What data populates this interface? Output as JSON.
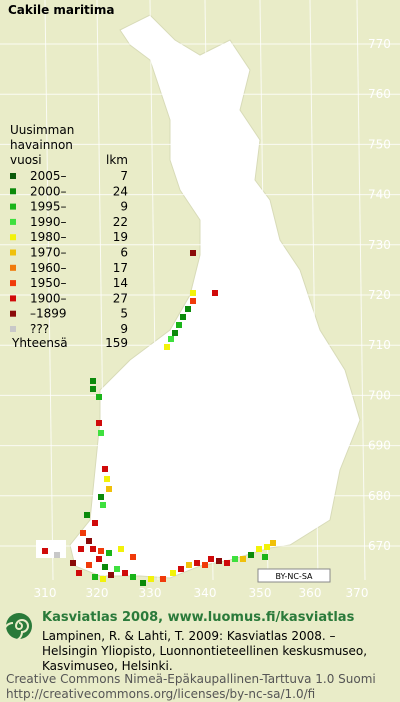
{
  "title": "Cakile maritima",
  "legend": {
    "heading": [
      "Uusimman",
      "havainnon",
      "vuosi"
    ],
    "count_heading": "lkm",
    "rows": [
      {
        "label": "2005–",
        "count": 7,
        "color": "#0a5a0a"
      },
      {
        "label": "2000–",
        "count": 24,
        "color": "#0b8a0b"
      },
      {
        "label": "1995–",
        "count": 9,
        "color": "#19b419"
      },
      {
        "label": "1990–",
        "count": 22,
        "color": "#3ee03e"
      },
      {
        "label": "1980–",
        "count": 19,
        "color": "#f2f20a"
      },
      {
        "label": "1970–",
        "count": 6,
        "color": "#f0c00a"
      },
      {
        "label": "1960–",
        "count": 17,
        "color": "#f07a0a"
      },
      {
        "label": "1950–",
        "count": 14,
        "color": "#f03a0a"
      },
      {
        "label": "1900–",
        "count": 27,
        "color": "#d00a0a"
      },
      {
        "label": "–1899",
        "count": 5,
        "color": "#8a0a0a"
      },
      {
        "label": "???",
        "count": 9,
        "color": "#c8c8c8"
      }
    ],
    "total_label": "Yhteensä",
    "total": 159
  },
  "grid": {
    "y_labels": [
      770,
      760,
      750,
      740,
      730,
      720,
      710,
      700,
      690,
      680,
      670
    ],
    "x_labels": [
      310,
      320,
      330,
      340,
      350,
      360,
      370
    ]
  },
  "license_badge": "BY-NC-SA",
  "footer": {
    "heading": "Kasviatlas 2008, www.luomus.fi/kasviatlas",
    "citation": [
      "Lampinen, R. & Lahti, T. 2009: Kasviatlas 2008. –",
      "Helsingin Yliopisto, Luonnontieteellinen keskusmuseo,",
      "Kasvimuseo, Helsinki."
    ],
    "license": [
      "Creative Commons Nimeä-Epäkaupallinen-Tarttuva 1.0 Suomi",
      "http://creativecommons.org/licenses/by-nc-sa/1.0/fi"
    ]
  }
}
